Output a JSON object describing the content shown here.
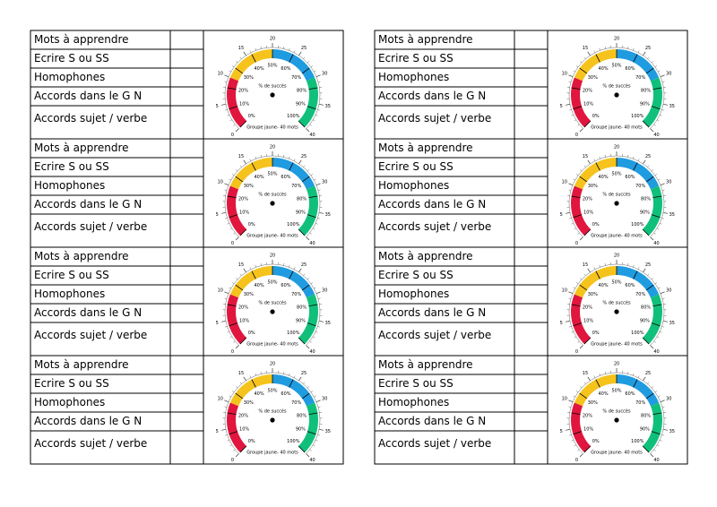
{
  "cards": [
    {
      "rows": [
        "Mots à apprendre",
        "Ecrire S ou SS",
        "Homophones",
        "Accords dans le G N",
        "Accords sujet / verbe"
      ],
      "gauge": {
        "scale": [
          0,
          5,
          10,
          15,
          20,
          25,
          30,
          35,
          40
        ],
        "percents": [
          "0%",
          "10%",
          "20%",
          "30%",
          "40%",
          "50%",
          "60%",
          "70%",
          "80%",
          "90%",
          "100%"
        ],
        "caption": "% de succès",
        "footer": "Groupe jaune- 40 mots"
      }
    },
    {
      "rows": [
        "Mots à apprendre",
        "Ecrire S ou SS",
        "Homophones",
        "Accords dans le G N",
        "Accords sujet / verbe"
      ],
      "gauge": {
        "scale": [
          0,
          5,
          10,
          15,
          20,
          25,
          30,
          35,
          40
        ],
        "percents": [
          "0%",
          "10%",
          "20%",
          "30%",
          "40%",
          "50%",
          "60%",
          "70%",
          "80%",
          "90%",
          "100%"
        ],
        "caption": "% de succès",
        "footer": "Groupe jaune- 40 mots"
      }
    },
    {
      "rows": [
        "Mots à apprendre",
        "Ecrire S ou SS",
        "Homophones",
        "Accords dans le G N",
        "Accords sujet / verbe"
      ],
      "gauge": {
        "scale": [
          0,
          5,
          10,
          15,
          20,
          25,
          30,
          35,
          40
        ],
        "percents": [
          "0%",
          "10%",
          "20%",
          "30%",
          "40%",
          "50%",
          "60%",
          "70%",
          "80%",
          "90%",
          "100%"
        ],
        "caption": "% de succès",
        "footer": "Groupe jaune- 40 mots"
      }
    },
    {
      "rows": [
        "Mots à apprendre",
        "Ecrire S ou SS",
        "Homophones",
        "Accords dans le G N",
        "Accords sujet / verbe"
      ],
      "gauge": {
        "scale": [
          0,
          5,
          10,
          15,
          20,
          25,
          30,
          35,
          40
        ],
        "percents": [
          "0%",
          "10%",
          "20%",
          "30%",
          "40%",
          "50%",
          "60%",
          "70%",
          "80%",
          "90%",
          "100%"
        ],
        "caption": "% de succès",
        "footer": "Groupe jaune- 40 mots"
      }
    },
    {
      "rows": [
        "Mots à apprendre",
        "Ecrire S ou SS",
        "Homophones",
        "Accords dans le G N",
        "Accords sujet / verbe"
      ],
      "gauge": {
        "scale": [
          0,
          5,
          10,
          15,
          20,
          25,
          30,
          35,
          40
        ],
        "percents": [
          "0%",
          "10%",
          "20%",
          "30%",
          "40%",
          "50%",
          "60%",
          "70%",
          "80%",
          "90%",
          "100%"
        ],
        "caption": "% de succès",
        "footer": "Groupe jaune- 40 mots"
      }
    },
    {
      "rows": [
        "Mots à apprendre",
        "Ecrire S ou SS",
        "Homophones",
        "Accords dans le G N",
        "Accords sujet / verbe"
      ],
      "gauge": {
        "scale": [
          0,
          5,
          10,
          15,
          20,
          25,
          30,
          35,
          40
        ],
        "percents": [
          "0%",
          "10%",
          "20%",
          "30%",
          "40%",
          "50%",
          "60%",
          "70%",
          "80%",
          "90%",
          "100%"
        ],
        "caption": "% de succès",
        "footer": "Groupe jaune- 40 mots"
      }
    },
    {
      "rows": [
        "Mots à apprendre",
        "Ecrire S ou SS",
        "Homophones",
        "Accords dans le G N",
        "Accords sujet / verbe"
      ],
      "gauge": {
        "scale": [
          0,
          5,
          10,
          15,
          20,
          25,
          30,
          35,
          40
        ],
        "percents": [
          "0%",
          "10%",
          "20%",
          "30%",
          "40%",
          "50%",
          "60%",
          "70%",
          "80%",
          "90%",
          "100%"
        ],
        "caption": "% de succès",
        "footer": "Groupe jaune- 40 mots"
      }
    },
    {
      "rows": [
        "Mots à apprendre",
        "Ecrire S ou SS",
        "Homophones",
        "Accords dans le G N",
        "Accords sujet / verbe"
      ],
      "gauge": {
        "scale": [
          0,
          5,
          10,
          15,
          20,
          25,
          30,
          35,
          40
        ],
        "percents": [
          "0%",
          "10%",
          "20%",
          "30%",
          "40%",
          "50%",
          "60%",
          "70%",
          "80%",
          "90%",
          "100%"
        ],
        "caption": "% de succès",
        "footer": "Groupe jaune- 40 mots"
      }
    }
  ]
}
